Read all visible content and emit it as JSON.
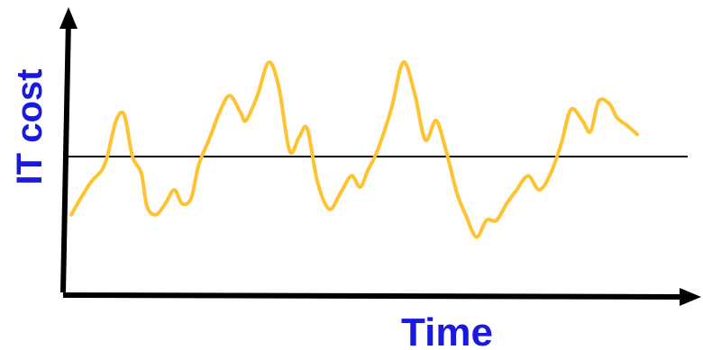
{
  "chart_data": {
    "type": "line",
    "title": "",
    "xlabel": "Time",
    "ylabel": "IT cost",
    "grid": false,
    "xlim": [
      0,
      100
    ],
    "ylim": [
      0,
      100
    ],
    "baseline": 50,
    "series": [
      {
        "color": "#ffc231",
        "points": [
          [
            1.3,
            29
          ],
          [
            2.8,
            35
          ],
          [
            4.5,
            41
          ],
          [
            6.1,
            45
          ],
          [
            7.0,
            50
          ],
          [
            8.4,
            63
          ],
          [
            9.7,
            65
          ],
          [
            11.0,
            50
          ],
          [
            12.4,
            44
          ],
          [
            13.3,
            32
          ],
          [
            14.7,
            29
          ],
          [
            16.2,
            33
          ],
          [
            17.6,
            38
          ],
          [
            18.9,
            33
          ],
          [
            20.3,
            35
          ],
          [
            21.5,
            47
          ],
          [
            23.1,
            56
          ],
          [
            24.8,
            66
          ],
          [
            26.4,
            72
          ],
          [
            28.1,
            66
          ],
          [
            29.0,
            63
          ],
          [
            30.8,
            72
          ],
          [
            32.6,
            84
          ],
          [
            34.2,
            75
          ],
          [
            35.9,
            52
          ],
          [
            37.4,
            57
          ],
          [
            38.7,
            60
          ],
          [
            40.3,
            41
          ],
          [
            42.2,
            31
          ],
          [
            44.0,
            37
          ],
          [
            45.7,
            43
          ],
          [
            47.1,
            39
          ],
          [
            48.3,
            45
          ],
          [
            49.8,
            52
          ],
          [
            52.0,
            67
          ],
          [
            53.9,
            84
          ],
          [
            55.7,
            73
          ],
          [
            57.4,
            56
          ],
          [
            59.1,
            63
          ],
          [
            60.6,
            53
          ],
          [
            62.4,
            37
          ],
          [
            63.8,
            29
          ],
          [
            65.5,
            21
          ],
          [
            67.1,
            27
          ],
          [
            68.7,
            27
          ],
          [
            70.3,
            33
          ],
          [
            71.9,
            38
          ],
          [
            73.7,
            43
          ],
          [
            75.5,
            38
          ],
          [
            77.3,
            44
          ],
          [
            79.0,
            55
          ],
          [
            80.5,
            67
          ],
          [
            82.3,
            63
          ],
          [
            83.6,
            59
          ],
          [
            84.9,
            70
          ],
          [
            86.6,
            69
          ],
          [
            87.8,
            64
          ],
          [
            89.5,
            61
          ],
          [
            91.0,
            58
          ]
        ]
      }
    ]
  },
  "colors": {
    "series_line": "#ffc231",
    "axis": "#000000",
    "baseline": "#000000",
    "label_text": "#1a1adf"
  }
}
